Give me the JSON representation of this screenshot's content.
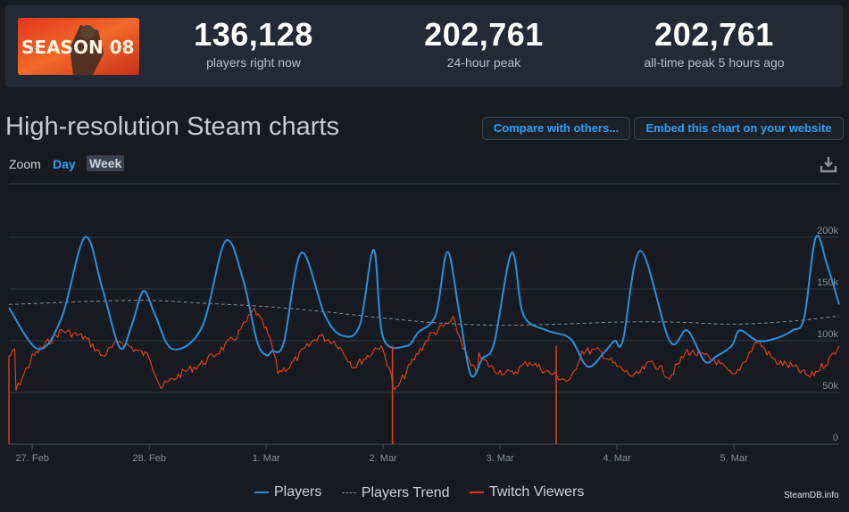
{
  "header": {
    "game_image_label": "SEASON 08",
    "stats": [
      {
        "value": "136,128",
        "label": "players right now"
      },
      {
        "value": "202,761",
        "label": "24-hour peak"
      },
      {
        "value": "202,761",
        "label": "all-time peak 5 hours ago"
      }
    ]
  },
  "title": "High-resolution Steam charts",
  "buttons": {
    "compare": "Compare with others...",
    "embed": "Embed this chart on your website"
  },
  "zoom": {
    "label": "Zoom",
    "day": "Day",
    "week": "Week"
  },
  "credit": "SteamDB.info",
  "colors": {
    "players": "#2a8fd8",
    "trend": "#8a8f96",
    "twitch": "#d9401b",
    "accent": "#2ea1f5"
  },
  "chart_data": {
    "type": "line",
    "ylim": [
      0,
      200000
    ],
    "yticks": [
      0,
      50000,
      100000,
      150000,
      200000
    ],
    "ytick_labels": [
      "0",
      "50k",
      "100k",
      "150k",
      "200k"
    ],
    "x_range_days": [
      -0.2,
      6.9
    ],
    "xticks": [
      0,
      1,
      2,
      3,
      4,
      5,
      6
    ],
    "xtick_labels": [
      "27. Feb",
      "28. Feb",
      "1. Mar",
      "2. Mar",
      "3. Mar",
      "4. Mar",
      "5. Mar"
    ],
    "grid": true,
    "legend_position": "bottom",
    "series": [
      {
        "name": "Players",
        "x": [
          -0.2,
          0.05,
          0.25,
          0.45,
          0.6,
          0.75,
          0.85,
          0.95,
          1.05,
          1.2,
          1.45,
          1.65,
          1.8,
          1.92,
          2.0,
          2.05,
          2.15,
          2.3,
          2.5,
          2.65,
          2.8,
          2.92,
          3.0,
          3.2,
          3.3,
          3.45,
          3.55,
          3.65,
          3.75,
          3.85,
          3.95,
          4.1,
          4.2,
          4.4,
          4.6,
          4.75,
          4.9,
          4.98,
          5.05,
          5.2,
          5.45,
          5.6,
          5.75,
          5.85,
          5.98,
          6.05,
          6.2,
          6.35,
          6.5,
          6.6,
          6.7,
          6.8,
          6.9
        ],
        "y": [
          132000,
          92000,
          122000,
          200000,
          150000,
          93000,
          115000,
          148000,
          125000,
          92000,
          113000,
          196000,
          160000,
          100000,
          86000,
          90000,
          98000,
          185000,
          125000,
          105000,
          115000,
          188000,
          103000,
          95000,
          108000,
          125000,
          186000,
          128000,
          67000,
          83000,
          98000,
          185000,
          125000,
          110000,
          102000,
          75000,
          90000,
          100000,
          100000,
          187000,
          100000,
          110000,
          80000,
          85000,
          95000,
          110000,
          100000,
          102000,
          110000,
          122000,
          200000,
          172000,
          135000
        ]
      },
      {
        "name": "Players Trend",
        "x": [
          -0.2,
          0.5,
          1.0,
          1.5,
          2.0,
          2.5,
          3.0,
          3.5,
          4.0,
          4.5,
          5.0,
          5.5,
          6.0,
          6.5,
          6.9
        ],
        "y": [
          135000,
          138000,
          139000,
          136000,
          133000,
          128000,
          122000,
          117000,
          115000,
          116000,
          118000,
          118000,
          116000,
          119000,
          124000
        ]
      },
      {
        "name": "Twitch Viewers",
        "x": [
          -0.2,
          -0.15,
          -0.14,
          0.0,
          0.1,
          0.25,
          0.45,
          0.6,
          0.75,
          0.9,
          1.0,
          1.1,
          1.3,
          1.45,
          1.6,
          1.75,
          1.9,
          2.0,
          2.05,
          2.1,
          2.2,
          2.3,
          2.45,
          2.6,
          2.75,
          2.9,
          2.95,
          3.0,
          3.05,
          3.1,
          3.25,
          3.4,
          3.6,
          3.75,
          3.8,
          3.82,
          3.95,
          4.1,
          4.25,
          4.4,
          4.5,
          4.6,
          4.7,
          4.85,
          5.0,
          5.15,
          5.3,
          5.45,
          5.6,
          5.75,
          5.85,
          6.0,
          6.2,
          6.35,
          6.5,
          6.65,
          6.8,
          6.9
        ],
        "y": [
          85000,
          90000,
          52000,
          84000,
          95000,
          110000,
          103000,
          85000,
          100000,
          90000,
          85000,
          55000,
          70000,
          78000,
          90000,
          105000,
          130000,
          110000,
          95000,
          70000,
          75000,
          88000,
          105000,
          98000,
          75000,
          88000,
          95000,
          90000,
          75000,
          50000,
          80000,
          105000,
          120000,
          75000,
          70000,
          85000,
          72000,
          68000,
          80000,
          70000,
          65000,
          60000,
          90000,
          90000,
          75000,
          65000,
          80000,
          65000,
          90000,
          85000,
          80000,
          65000,
          100000,
          80000,
          75000,
          65000,
          80000,
          95000
        ]
      }
    ],
    "annotations": [
      {
        "series": "Twitch Viewers",
        "x": 3.08,
        "type": "drop",
        "y": 0
      },
      {
        "series": "Twitch Viewers",
        "x": 4.48,
        "type": "drop",
        "y": 0
      }
    ]
  }
}
